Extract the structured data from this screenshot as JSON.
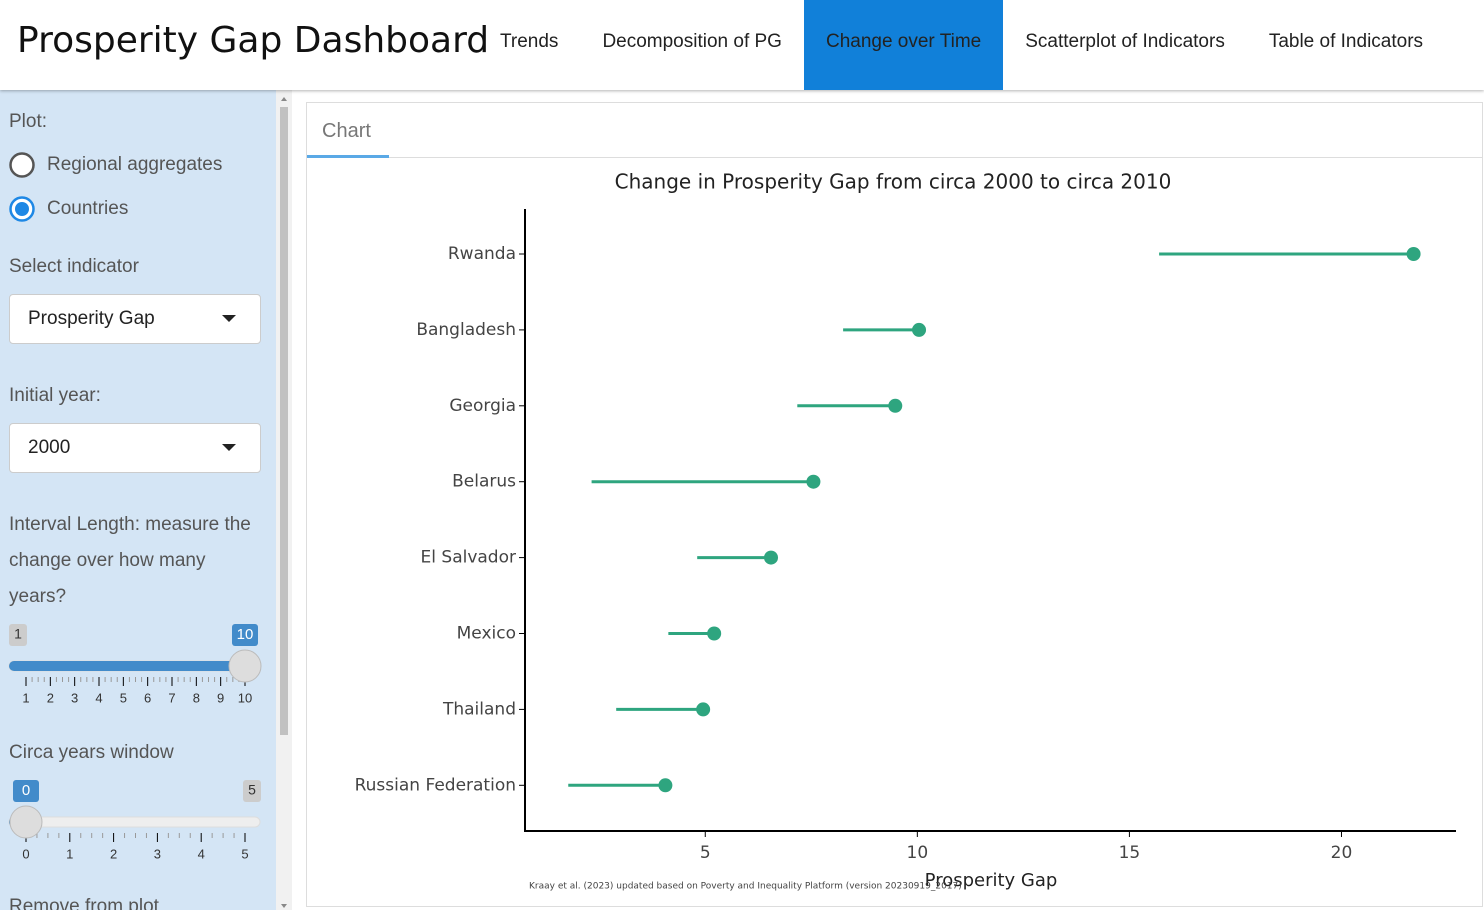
{
  "header": {
    "title": "Prosperity Gap Dashboard",
    "tabs": [
      "Trends",
      "Decomposition of PG",
      "Change over Time",
      "Scatterplot of Indicators",
      "Table of Indicators"
    ],
    "active_tab": 2
  },
  "sidebar": {
    "plot": {
      "label": "Plot:",
      "options": [
        "Regional aggregates",
        "Countries"
      ],
      "selected": 1
    },
    "indicator": {
      "label": "Select indicator",
      "value": "Prosperity Gap"
    },
    "initial_year": {
      "label": "Initial year:",
      "value": "2000"
    },
    "interval": {
      "label": "Interval Length: measure the change over how many years?",
      "min": 1,
      "max": 10,
      "value": 10,
      "ticks": [
        1,
        2,
        3,
        4,
        5,
        6,
        7,
        8,
        9,
        10
      ]
    },
    "circa": {
      "label": "Circa years window",
      "min": 0,
      "max": 5,
      "value": 0,
      "ticks": [
        0,
        1,
        2,
        3,
        4,
        5
      ]
    },
    "remove": {
      "label": "Remove from plot"
    }
  },
  "panel": {
    "tab": "Chart"
  },
  "chart_data": {
    "type": "dumbbell",
    "title": "Change in Prosperity Gap from circa 2000 to circa 2010",
    "x_label": "Prosperity Gap",
    "note": "Kraay et al. (2023) updated based on Poverty and Inequality Platform (version 20230919_2017)",
    "categories": [
      "Rwanda",
      "Bangladesh",
      "Georgia",
      "Belarus",
      "El Salvador",
      "Mexico",
      "Thailand",
      "Russian Federation"
    ],
    "series": [
      {
        "values": [
          15.7,
          8.25,
          7.17,
          2.32,
          4.81,
          4.13,
          2.9,
          1.77
        ],
        "color": "#2ea57f"
      },
      {
        "values": [
          21.7,
          10.04,
          9.48,
          7.55,
          6.55,
          5.21,
          4.95,
          4.06
        ],
        "color": "#2ea57f"
      }
    ],
    "xlim": [
      0.75,
      22.7
    ],
    "xticks": [
      5,
      10,
      15,
      20
    ]
  }
}
